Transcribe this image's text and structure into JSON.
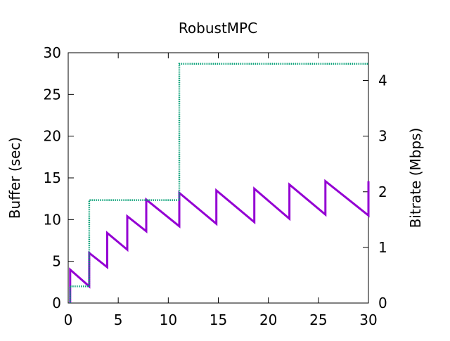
{
  "chart_data": {
    "type": "line",
    "title": "RobustMPC",
    "xlabel": "",
    "ylabel": "Buffer (sec)",
    "y2label": "Bitrate (Mbps)",
    "xlim": [
      0,
      30
    ],
    "ylim": [
      0,
      30
    ],
    "y2lim": [
      0,
      4.5
    ],
    "xticks": [
      "0",
      "5",
      "10",
      "15",
      "20",
      "25",
      "30"
    ],
    "yticks": [
      "0",
      "5",
      "10",
      "15",
      "20",
      "25",
      "30"
    ],
    "y2ticks": [
      "0",
      "1",
      "2",
      "3",
      "4"
    ],
    "grid": false,
    "legend": "none",
    "series": [
      {
        "axis": "left",
        "style": "solid",
        "color": "#9400d3",
        "points": [
          [
            0.2,
            0
          ],
          [
            0.2,
            4.0
          ],
          [
            2.1,
            2.0
          ],
          [
            2.1,
            6.0
          ],
          [
            3.9,
            4.3
          ],
          [
            3.9,
            8.4
          ],
          [
            5.9,
            6.4
          ],
          [
            5.9,
            10.4
          ],
          [
            7.8,
            8.6
          ],
          [
            7.8,
            12.4
          ],
          [
            11.1,
            9.2
          ],
          [
            11.1,
            13.2
          ],
          [
            14.8,
            9.5
          ],
          [
            14.8,
            13.5
          ],
          [
            18.6,
            9.7
          ],
          [
            18.6,
            13.7
          ],
          [
            22.1,
            10.1
          ],
          [
            22.1,
            14.2
          ],
          [
            25.7,
            10.6
          ],
          [
            25.7,
            14.6
          ],
          [
            30.0,
            10.5
          ],
          [
            30.0,
            14.6
          ]
        ]
      },
      {
        "axis": "right",
        "style": "dotted",
        "color": "#009e73",
        "points": [
          [
            0.2,
            0
          ],
          [
            0.2,
            0.3
          ],
          [
            2.1,
            0.3
          ],
          [
            2.1,
            1.85
          ],
          [
            11.1,
            1.85
          ],
          [
            11.1,
            4.3
          ],
          [
            30.0,
            4.3
          ]
        ]
      }
    ]
  }
}
